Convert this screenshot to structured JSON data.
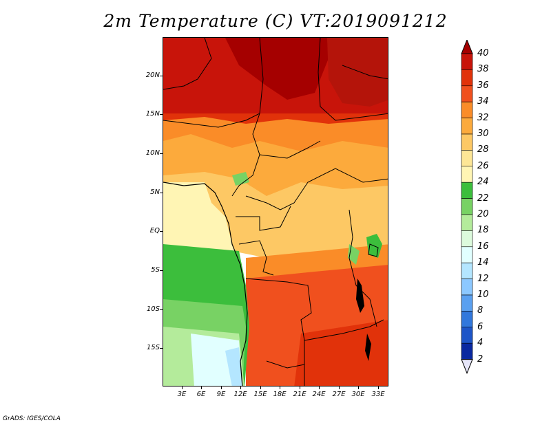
{
  "title": "2m Temperature (C) VT:2019091212",
  "credit": "GrADS: IGES/COLA",
  "lat_labels": [
    "20N",
    "15N",
    "10N",
    "5N",
    "EQ",
    "5S",
    "10S",
    "15S"
  ],
  "lon_labels": [
    "3E",
    "6E",
    "9E",
    "12E",
    "15E",
    "18E",
    "21E",
    "24E",
    "27E",
    "30E",
    "33E"
  ],
  "colorbar": {
    "levels": [
      "40",
      "38",
      "36",
      "34",
      "32",
      "30",
      "28",
      "26",
      "24",
      "22",
      "20",
      "18",
      "16",
      "14",
      "12",
      "10",
      "8",
      "6",
      "4",
      "2"
    ],
    "colors": [
      "#a50000",
      "#c8140a",
      "#e1320a",
      "#f0501e",
      "#fa8c28",
      "#fcaa3c",
      "#fdc864",
      "#fde696",
      "#fff5b4",
      "#3cbe3c",
      "#78d264",
      "#b4eb9b",
      "#dcfadc",
      "#e1ffff",
      "#b4e6ff",
      "#8cc8ff",
      "#5aa0f0",
      "#3278dc",
      "#1e55c8",
      "#0a28a0",
      "#0a0a6e"
    ],
    "top_arrow_color": "#a50000",
    "bottom_arrow_color": "#e6e6fa"
  },
  "map": {
    "lon_range": [
      0,
      34.5
    ],
    "lat_range": [
      -20,
      25
    ]
  }
}
